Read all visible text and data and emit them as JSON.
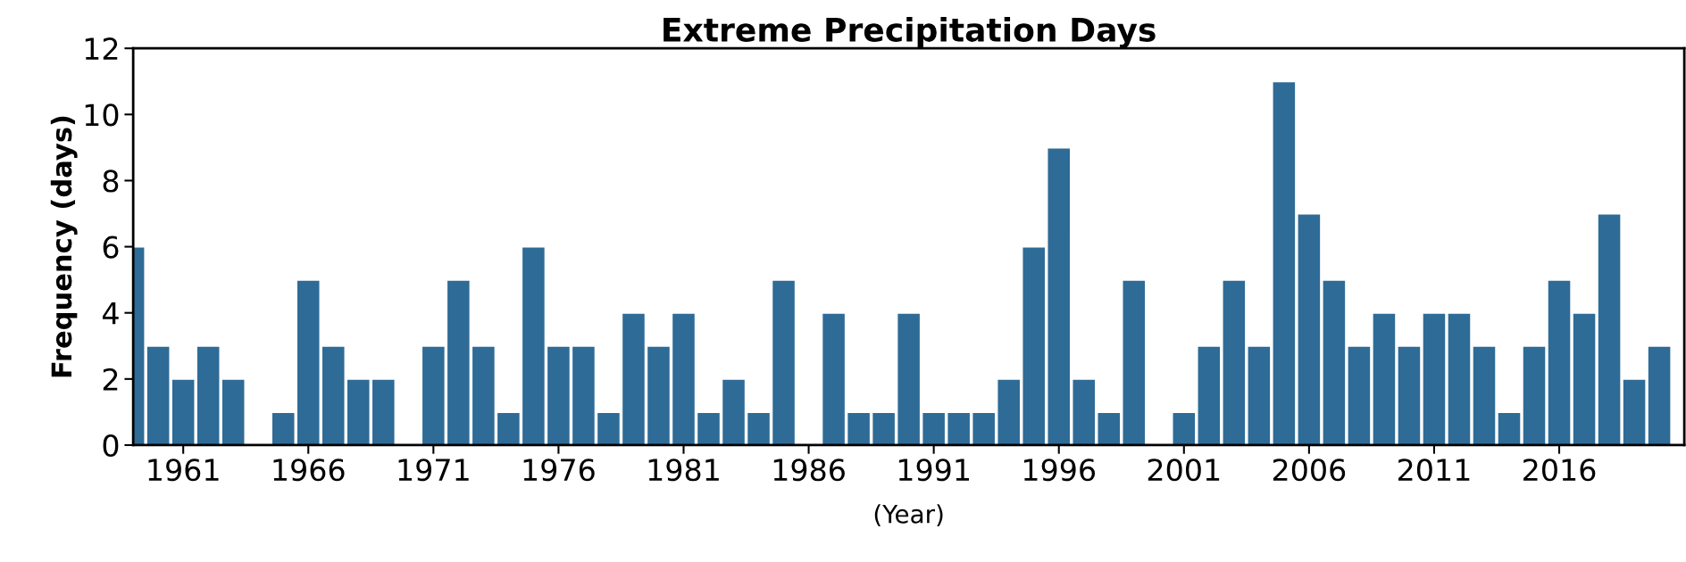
{
  "chart_data": {
    "type": "bar",
    "title": "Extreme Precipitation Days",
    "xlabel": "(Year)",
    "ylabel": "Frequency (days)",
    "x": [
      1959,
      1960,
      1961,
      1962,
      1963,
      1964,
      1965,
      1966,
      1967,
      1968,
      1969,
      1970,
      1971,
      1972,
      1973,
      1974,
      1975,
      1976,
      1977,
      1978,
      1979,
      1980,
      1981,
      1982,
      1983,
      1984,
      1985,
      1986,
      1987,
      1988,
      1989,
      1990,
      1991,
      1992,
      1993,
      1994,
      1995,
      1996,
      1997,
      1998,
      1999,
      2000,
      2001,
      2002,
      2003,
      2004,
      2005,
      2006,
      2007,
      2008,
      2009,
      2010,
      2011,
      2012,
      2013,
      2014,
      2015,
      2016,
      2017,
      2018,
      2019,
      2020
    ],
    "values": [
      6,
      3,
      2,
      3,
      2,
      0,
      1,
      5,
      3,
      2,
      2,
      0,
      3,
      5,
      3,
      1,
      6,
      3,
      3,
      1,
      4,
      3,
      4,
      1,
      2,
      1,
      5,
      0,
      4,
      1,
      1,
      4,
      1,
      1,
      1,
      2,
      6,
      9,
      2,
      1,
      5,
      0,
      1,
      3,
      5,
      3,
      11,
      7,
      5,
      3,
      4,
      3,
      4,
      4,
      3,
      1,
      3,
      5,
      4,
      7,
      2,
      3
    ],
    "color": "#2e6b96",
    "xlim": [
      1959,
      2021
    ],
    "xticks": [
      1961,
      1966,
      1971,
      1976,
      1981,
      1986,
      1991,
      1996,
      2001,
      2006,
      2011,
      2016
    ],
    "ylim": [
      0,
      12
    ],
    "yticks": [
      0,
      2,
      4,
      6,
      8,
      10,
      12
    ],
    "grid": false
  }
}
